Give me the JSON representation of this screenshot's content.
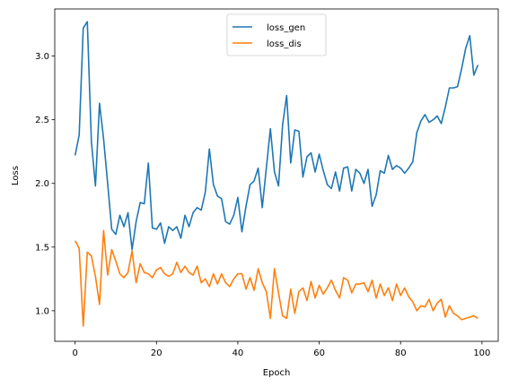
{
  "chart_data": {
    "type": "line",
    "xlabel": "Epoch",
    "ylabel": "Loss",
    "xlim": [
      -5,
      104
    ],
    "ylim": [
      0.76,
      3.37
    ],
    "xticks": [
      0,
      20,
      40,
      60,
      80,
      100
    ],
    "yticks": [
      1.0,
      1.5,
      2.0,
      2.5,
      3.0
    ],
    "xtick_labels": [
      "0",
      "20",
      "40",
      "60",
      "80",
      "100"
    ],
    "ytick_labels": [
      "1.0",
      "1.5",
      "2.0",
      "2.5",
      "3.0"
    ],
    "grid": false,
    "legend_position": "top-center",
    "series": [
      {
        "name": "loss_gen",
        "color": "#1f77b4",
        "values": [
          2.22,
          2.38,
          3.22,
          3.27,
          2.33,
          1.98,
          2.63,
          2.35,
          2.0,
          1.64,
          1.6,
          1.75,
          1.66,
          1.77,
          1.48,
          1.7,
          1.85,
          1.84,
          2.16,
          1.65,
          1.64,
          1.69,
          1.53,
          1.66,
          1.63,
          1.66,
          1.57,
          1.75,
          1.66,
          1.77,
          1.81,
          1.79,
          1.93,
          2.27,
          1.99,
          1.9,
          1.88,
          1.7,
          1.68,
          1.75,
          1.89,
          1.62,
          1.82,
          1.99,
          2.02,
          2.12,
          1.81,
          2.12,
          2.43,
          2.09,
          1.98,
          2.46,
          2.69,
          2.16,
          2.42,
          2.41,
          2.05,
          2.21,
          2.24,
          2.09,
          2.23,
          2.1,
          1.99,
          1.96,
          2.09,
          1.94,
          2.12,
          2.13,
          1.94,
          2.11,
          2.08,
          2.0,
          2.11,
          1.82,
          1.91,
          2.1,
          2.08,
          2.22,
          2.11,
          2.14,
          2.12,
          2.08,
          2.12,
          2.17,
          2.4,
          2.49,
          2.54,
          2.48,
          2.5,
          2.53,
          2.47,
          2.6,
          2.75,
          2.75,
          2.76,
          2.9,
          3.06,
          3.16,
          2.85,
          2.93
        ]
      },
      {
        "name": "loss_dis",
        "color": "#ff7f0e",
        "values": [
          1.55,
          1.49,
          0.88,
          1.46,
          1.43,
          1.27,
          1.05,
          1.63,
          1.28,
          1.48,
          1.39,
          1.29,
          1.26,
          1.3,
          1.47,
          1.22,
          1.37,
          1.3,
          1.29,
          1.26,
          1.32,
          1.34,
          1.29,
          1.27,
          1.29,
          1.38,
          1.3,
          1.35,
          1.3,
          1.28,
          1.35,
          1.22,
          1.25,
          1.19,
          1.29,
          1.21,
          1.29,
          1.22,
          1.19,
          1.25,
          1.29,
          1.29,
          1.17,
          1.26,
          1.16,
          1.33,
          1.22,
          1.15,
          0.94,
          1.33,
          1.14,
          0.96,
          0.94,
          1.17,
          0.98,
          1.15,
          1.18,
          1.08,
          1.23,
          1.1,
          1.2,
          1.13,
          1.18,
          1.24,
          1.16,
          1.1,
          1.26,
          1.24,
          1.14,
          1.21,
          1.21,
          1.22,
          1.15,
          1.24,
          1.1,
          1.21,
          1.12,
          1.18,
          1.08,
          1.21,
          1.12,
          1.18,
          1.11,
          1.07,
          1.0,
          1.04,
          1.03,
          1.09,
          1.0,
          1.06,
          1.09,
          0.95,
          1.04,
          0.98,
          0.96,
          0.93,
          0.94,
          0.95,
          0.96,
          0.94
        ]
      }
    ]
  }
}
